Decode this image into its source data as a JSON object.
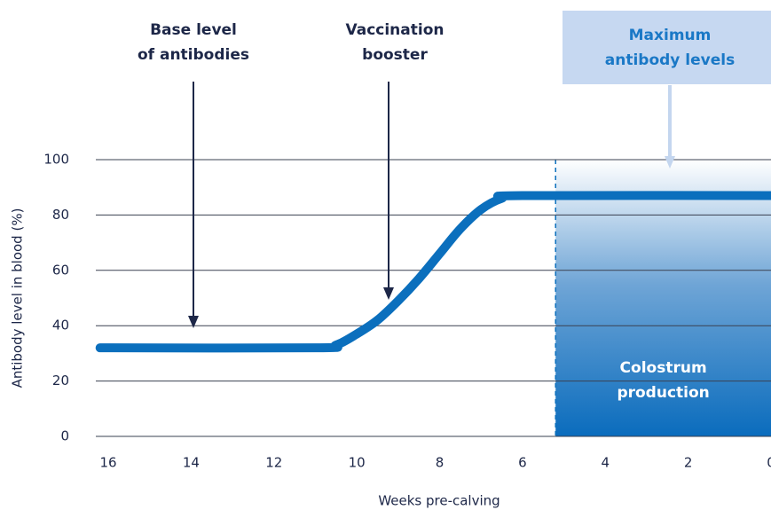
{
  "chart_data": {
    "type": "line",
    "x": [
      16.2,
      11,
      10.5,
      10,
      9.5,
      9,
      8.5,
      8,
      7.5,
      7,
      6.5,
      6,
      0
    ],
    "values": [
      32,
      32,
      33,
      37,
      42,
      49,
      57,
      66,
      75,
      82,
      86,
      87,
      87
    ],
    "color": "#0b6fbd",
    "xlim": [
      16.3,
      0
    ],
    "xticks": [
      16,
      14,
      12,
      10,
      8,
      6,
      4,
      2,
      0
    ],
    "ylim": [
      0,
      100
    ],
    "yticks": [
      0,
      20,
      40,
      60,
      80,
      100
    ],
    "grid": true,
    "xlabel": "Weeks pre-calving",
    "ylabel": "Antibody level in blood (%)",
    "shaded_region": {
      "x_start": 5.2,
      "label": [
        "Colostrum",
        "production"
      ]
    },
    "annotations": [
      {
        "text": [
          "Base level",
          "of antibodies"
        ]
      },
      {
        "text": [
          "Vaccination",
          "booster"
        ]
      },
      {
        "text": [
          "Maximum",
          "antibody levels"
        ]
      }
    ]
  }
}
